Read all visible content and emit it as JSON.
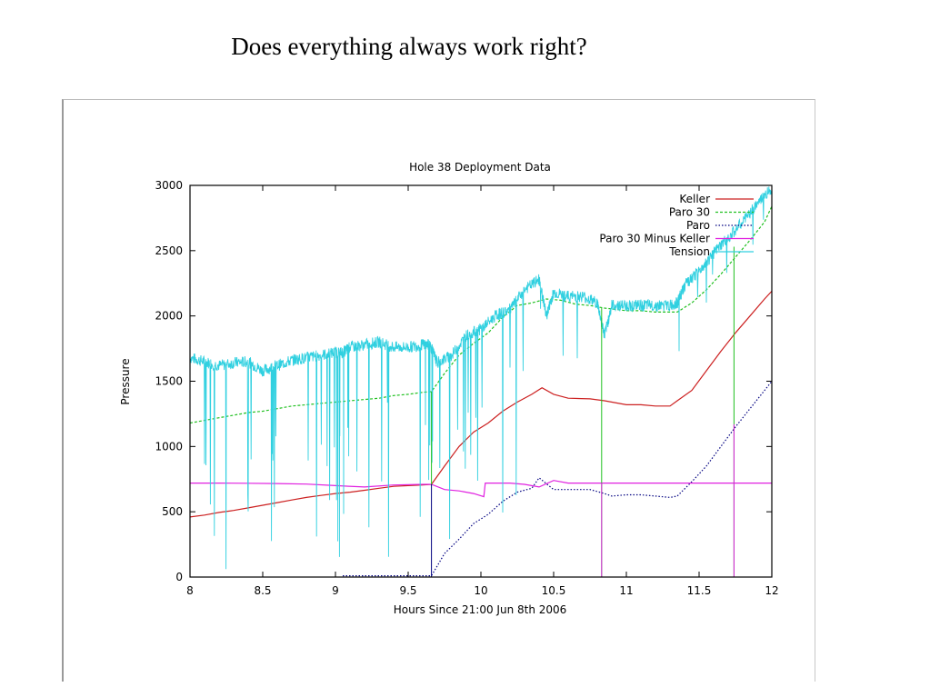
{
  "slide": {
    "title": "Does everything always work right?"
  },
  "chart_data": {
    "type": "line",
    "title": "Hole 38 Deployment Data",
    "xlabel": "Hours Since 21:00 Jun 8th 2006",
    "ylabel": "Pressure",
    "xlim": [
      8,
      12
    ],
    "ylim": [
      0,
      3000
    ],
    "xticks": [
      "8",
      "8.5",
      "9",
      "9.5",
      "10",
      "10.5",
      "11",
      "11.5",
      "12"
    ],
    "yticks": [
      "0",
      "500",
      "1000",
      "1500",
      "2000",
      "2500",
      "3000"
    ],
    "legend_position": "top-right",
    "grid": false,
    "series": [
      {
        "name": "Keller",
        "color": "#cc2020",
        "style": "solid",
        "x": [
          8.0,
          8.1,
          8.2,
          8.3,
          8.4,
          8.5,
          8.6,
          8.7,
          8.8,
          8.9,
          9.0,
          9.1,
          9.2,
          9.3,
          9.4,
          9.5,
          9.6,
          9.66,
          9.75,
          9.85,
          9.95,
          10.05,
          10.15,
          10.25,
          10.35,
          10.42,
          10.5,
          10.6,
          10.75,
          10.85,
          11.0,
          11.1,
          11.2,
          11.3,
          11.35,
          11.45,
          11.55,
          11.65,
          11.75,
          11.85,
          11.95,
          12.0
        ],
        "y": [
          460,
          475,
          495,
          510,
          530,
          550,
          570,
          590,
          610,
          625,
          640,
          650,
          665,
          680,
          695,
          700,
          705,
          710,
          850,
          1000,
          1110,
          1180,
          1270,
          1340,
          1400,
          1450,
          1400,
          1370,
          1365,
          1350,
          1320,
          1320,
          1310,
          1310,
          1350,
          1430,
          1580,
          1730,
          1870,
          2000,
          2130,
          2190
        ]
      },
      {
        "name": "Paro 30",
        "color": "#20c020",
        "style": "dashed",
        "x": [
          8.0,
          8.1,
          8.2,
          8.3,
          8.4,
          8.5,
          8.6,
          8.7,
          8.8,
          8.9,
          9.0,
          9.1,
          9.2,
          9.3,
          9.4,
          9.5,
          9.6,
          9.66,
          9.75,
          9.85,
          9.95,
          10.05,
          10.15,
          10.25,
          10.35,
          10.45,
          10.55,
          10.65,
          10.75,
          10.85,
          11.0,
          11.1,
          11.2,
          11.35,
          11.45,
          11.55,
          11.65,
          11.75,
          11.85,
          11.95,
          12.0
        ],
        "y": [
          1180,
          1200,
          1220,
          1240,
          1260,
          1270,
          1290,
          1310,
          1320,
          1330,
          1340,
          1350,
          1360,
          1370,
          1390,
          1400,
          1415,
          1420,
          1560,
          1700,
          1790,
          1870,
          1990,
          2080,
          2100,
          2130,
          2120,
          2090,
          2080,
          2060,
          2040,
          2040,
          2030,
          2030,
          2100,
          2200,
          2320,
          2450,
          2580,
          2720,
          2840
        ]
      },
      {
        "name": "Paro",
        "color": "#000080",
        "style": "dotted",
        "x": [
          9.05,
          9.6,
          9.65,
          9.66,
          9.75,
          9.85,
          9.95,
          10.05,
          10.15,
          10.25,
          10.35,
          10.4,
          10.5,
          10.6,
          10.75,
          10.85,
          10.9,
          11.0,
          11.1,
          11.2,
          11.3,
          11.35,
          11.45,
          11.55,
          11.65,
          11.75,
          11.85,
          11.95,
          12.0
        ],
        "y": [
          10,
          10,
          10,
          10,
          180,
          290,
          410,
          480,
          580,
          650,
          680,
          760,
          670,
          670,
          670,
          640,
          620,
          630,
          630,
          620,
          610,
          620,
          730,
          850,
          1000,
          1150,
          1290,
          1430,
          1500
        ]
      },
      {
        "name": "Paro 30 Minus Keller",
        "color": "#e020e0",
        "style": "solid",
        "x": [
          8.0,
          8.2,
          8.4,
          8.6,
          8.8,
          9.0,
          9.2,
          9.4,
          9.6,
          9.66,
          9.75,
          9.85,
          9.95,
          10.02,
          10.03,
          10.2,
          10.3,
          10.4,
          10.5,
          10.6,
          10.8,
          11.0,
          11.2,
          11.4,
          11.6,
          11.8,
          12.0
        ],
        "y": [
          720,
          720,
          718,
          716,
          712,
          700,
          690,
          705,
          710,
          710,
          670,
          660,
          640,
          615,
          720,
          720,
          710,
          690,
          740,
          720,
          720,
          720,
          720,
          720,
          720,
          720,
          720
        ]
      },
      {
        "name": "Tension",
        "color": "#30d0e0",
        "style": "noisy",
        "x": [
          8.0,
          8.1,
          8.2,
          8.3,
          8.4,
          8.5,
          8.6,
          8.7,
          8.8,
          8.9,
          9.0,
          9.05,
          9.1,
          9.2,
          9.3,
          9.4,
          9.5,
          9.6,
          9.65,
          9.7,
          9.8,
          9.9,
          10.0,
          10.1,
          10.2,
          10.3,
          10.4,
          10.45,
          10.5,
          10.6,
          10.7,
          10.8,
          10.85,
          10.9,
          11.0,
          11.1,
          11.2,
          11.3,
          11.35,
          11.4,
          11.5,
          11.6,
          11.7,
          11.8,
          11.9,
          12.0
        ],
        "y": [
          1680,
          1650,
          1620,
          1640,
          1650,
          1580,
          1620,
          1660,
          1680,
          1700,
          1720,
          1720,
          1760,
          1780,
          1800,
          1760,
          1760,
          1780,
          1780,
          1640,
          1700,
          1850,
          1900,
          2000,
          2050,
          2200,
          2280,
          2000,
          2180,
          2150,
          2150,
          2100,
          1850,
          2080,
          2080,
          2080,
          2080,
          2080,
          2100,
          2230,
          2340,
          2480,
          2600,
          2720,
          2860,
          2980
        ]
      }
    ]
  }
}
